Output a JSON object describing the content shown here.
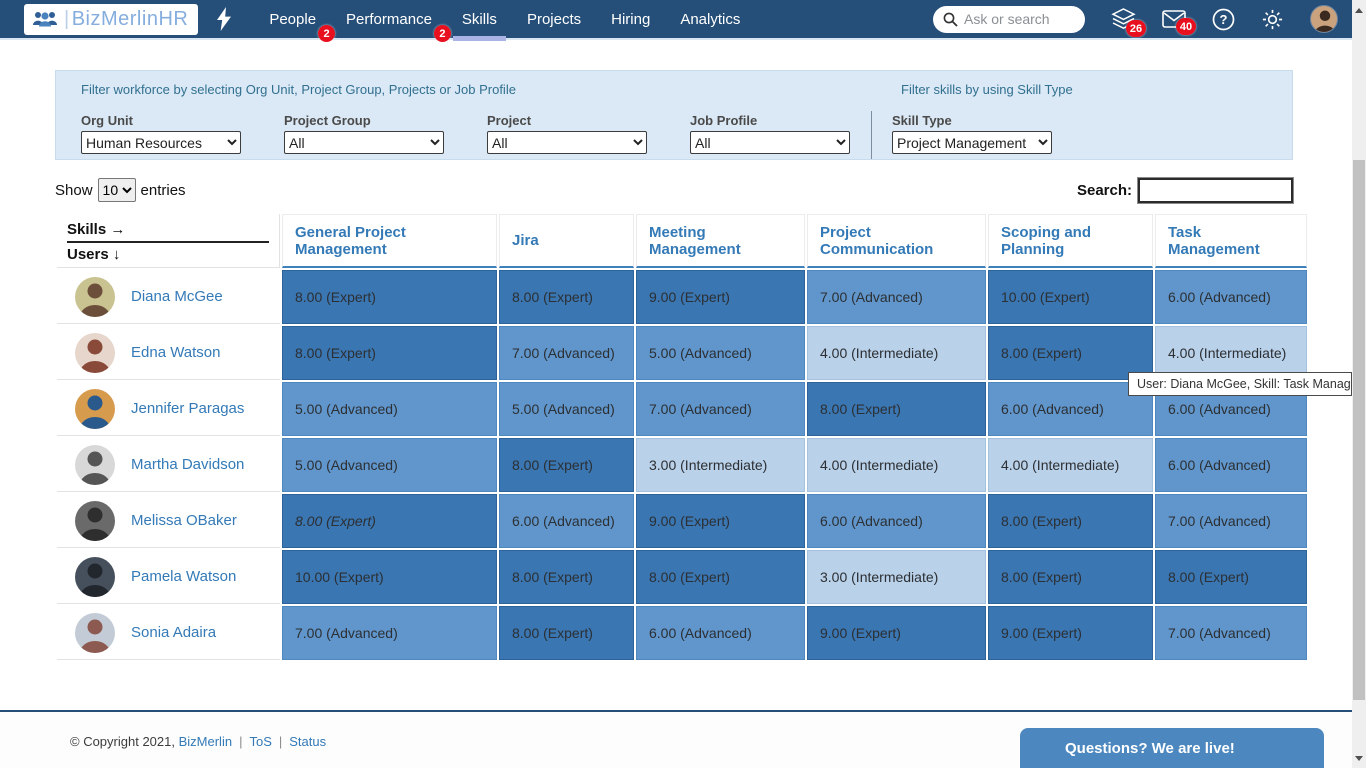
{
  "nav": {
    "logo_text": "BizMerlinHR",
    "items": [
      {
        "label": "People",
        "badge": "2",
        "active": false
      },
      {
        "label": "Performance",
        "badge": "2",
        "active": false
      },
      {
        "label": "Skills",
        "badge": null,
        "active": true
      },
      {
        "label": "Projects",
        "badge": null,
        "active": false
      },
      {
        "label": "Hiring",
        "badge": null,
        "active": false
      },
      {
        "label": "Analytics",
        "badge": null,
        "active": false
      }
    ],
    "search_placeholder": "Ask or search",
    "layers_badge": "26",
    "mail_badge": "40"
  },
  "filters": {
    "workforce_title": "Filter workforce by selecting Org Unit, Project Group, Projects or Job Profile",
    "skills_title": "Filter skills by using Skill Type",
    "fields": [
      {
        "label": "Org Unit",
        "value": "Human Resources"
      },
      {
        "label": "Project Group",
        "value": "All"
      },
      {
        "label": "Project",
        "value": "All"
      },
      {
        "label": "Job Profile",
        "value": "All"
      },
      {
        "label": "Skill Type",
        "value": "Project Management"
      }
    ]
  },
  "controls": {
    "show_label": "Show",
    "page_size": "10",
    "entries_label": "entries",
    "search_label": "Search:",
    "search_value": ""
  },
  "matrix": {
    "corner_skills": "Skills →",
    "corner_users": "Users ↓",
    "columns": [
      "General Project Management",
      "Jira",
      "Meeting Management",
      "Project Communication",
      "Scoping and Planning",
      "Task Management"
    ],
    "level_colors": {
      "expert": "#3a76b2",
      "advanced": "#6096cb",
      "intermediate": "#b9d1e9"
    },
    "rows": [
      {
        "name": "Diana McGee",
        "avatar_bg": "#c9c291",
        "avatar_fg": "#6b4f3a",
        "cells": [
          {
            "text": "8.00 (Expert)",
            "level": "expert"
          },
          {
            "text": "8.00 (Expert)",
            "level": "expert"
          },
          {
            "text": "9.00 (Expert)",
            "level": "expert"
          },
          {
            "text": "7.00 (Advanced)",
            "level": "advanced"
          },
          {
            "text": "10.00 (Expert)",
            "level": "expert"
          },
          {
            "text": "6.00 (Advanced)",
            "level": "advanced"
          }
        ]
      },
      {
        "name": "Edna Watson",
        "avatar_bg": "#e6d6cc",
        "avatar_fg": "#8a4a3a",
        "cells": [
          {
            "text": "8.00 (Expert)",
            "level": "expert"
          },
          {
            "text": "7.00 (Advanced)",
            "level": "advanced"
          },
          {
            "text": "5.00 (Advanced)",
            "level": "advanced"
          },
          {
            "text": "4.00 (Intermediate)",
            "level": "intermediate"
          },
          {
            "text": "8.00 (Expert)",
            "level": "expert"
          },
          {
            "text": "4.00 (Intermediate)",
            "level": "intermediate"
          }
        ]
      },
      {
        "name": "Jennifer Paragas",
        "avatar_bg": "#d79b4e",
        "avatar_fg": "#2a5a8c",
        "cells": [
          {
            "text": "5.00 (Advanced)",
            "level": "advanced"
          },
          {
            "text": "5.00 (Advanced)",
            "level": "advanced"
          },
          {
            "text": "7.00 (Advanced)",
            "level": "advanced"
          },
          {
            "text": "8.00 (Expert)",
            "level": "expert"
          },
          {
            "text": "6.00 (Advanced)",
            "level": "advanced"
          },
          {
            "text": "6.00 (Advanced)",
            "level": "advanced"
          }
        ]
      },
      {
        "name": "Martha Davidson",
        "avatar_bg": "#d8d8d8",
        "avatar_fg": "#555555",
        "cells": [
          {
            "text": "5.00 (Advanced)",
            "level": "advanced"
          },
          {
            "text": "8.00 (Expert)",
            "level": "expert"
          },
          {
            "text": "3.00 (Intermediate)",
            "level": "intermediate"
          },
          {
            "text": "4.00 (Intermediate)",
            "level": "intermediate"
          },
          {
            "text": "4.00 (Intermediate)",
            "level": "intermediate"
          },
          {
            "text": "6.00 (Advanced)",
            "level": "advanced"
          }
        ]
      },
      {
        "name": "Melissa OBaker",
        "avatar_bg": "#6a6a6a",
        "avatar_fg": "#2e2e2e",
        "cells": [
          {
            "text": "8.00 (Expert)",
            "level": "expert",
            "italic": true
          },
          {
            "text": "6.00 (Advanced)",
            "level": "advanced"
          },
          {
            "text": "9.00 (Expert)",
            "level": "expert"
          },
          {
            "text": "6.00 (Advanced)",
            "level": "advanced"
          },
          {
            "text": "8.00 (Expert)",
            "level": "expert"
          },
          {
            "text": "7.00 (Advanced)",
            "level": "advanced"
          }
        ]
      },
      {
        "name": "Pamela Watson",
        "avatar_bg": "#46505c",
        "avatar_fg": "#22272e",
        "cells": [
          {
            "text": "10.00 (Expert)",
            "level": "expert"
          },
          {
            "text": "8.00 (Expert)",
            "level": "expert"
          },
          {
            "text": "8.00 (Expert)",
            "level": "expert"
          },
          {
            "text": "3.00 (Intermediate)",
            "level": "intermediate"
          },
          {
            "text": "8.00 (Expert)",
            "level": "expert"
          },
          {
            "text": "8.00 (Expert)",
            "level": "expert"
          }
        ]
      },
      {
        "name": "Sonia Adaira",
        "avatar_bg": "#c3ccd6",
        "avatar_fg": "#8c5a50",
        "cells": [
          {
            "text": "7.00 (Advanced)",
            "level": "advanced"
          },
          {
            "text": "8.00 (Expert)",
            "level": "expert"
          },
          {
            "text": "6.00 (Advanced)",
            "level": "advanced"
          },
          {
            "text": "9.00 (Expert)",
            "level": "expert"
          },
          {
            "text": "9.00 (Expert)",
            "level": "expert"
          },
          {
            "text": "7.00 (Advanced)",
            "level": "advanced"
          }
        ]
      }
    ]
  },
  "tooltip": "User: Diana McGee, Skill: Task Management",
  "footer": {
    "copyright": "© Copyright 2021,",
    "links": [
      "BizMerlin",
      "ToS",
      "Status"
    ]
  },
  "chat": {
    "label": "Questions? We are live!"
  }
}
